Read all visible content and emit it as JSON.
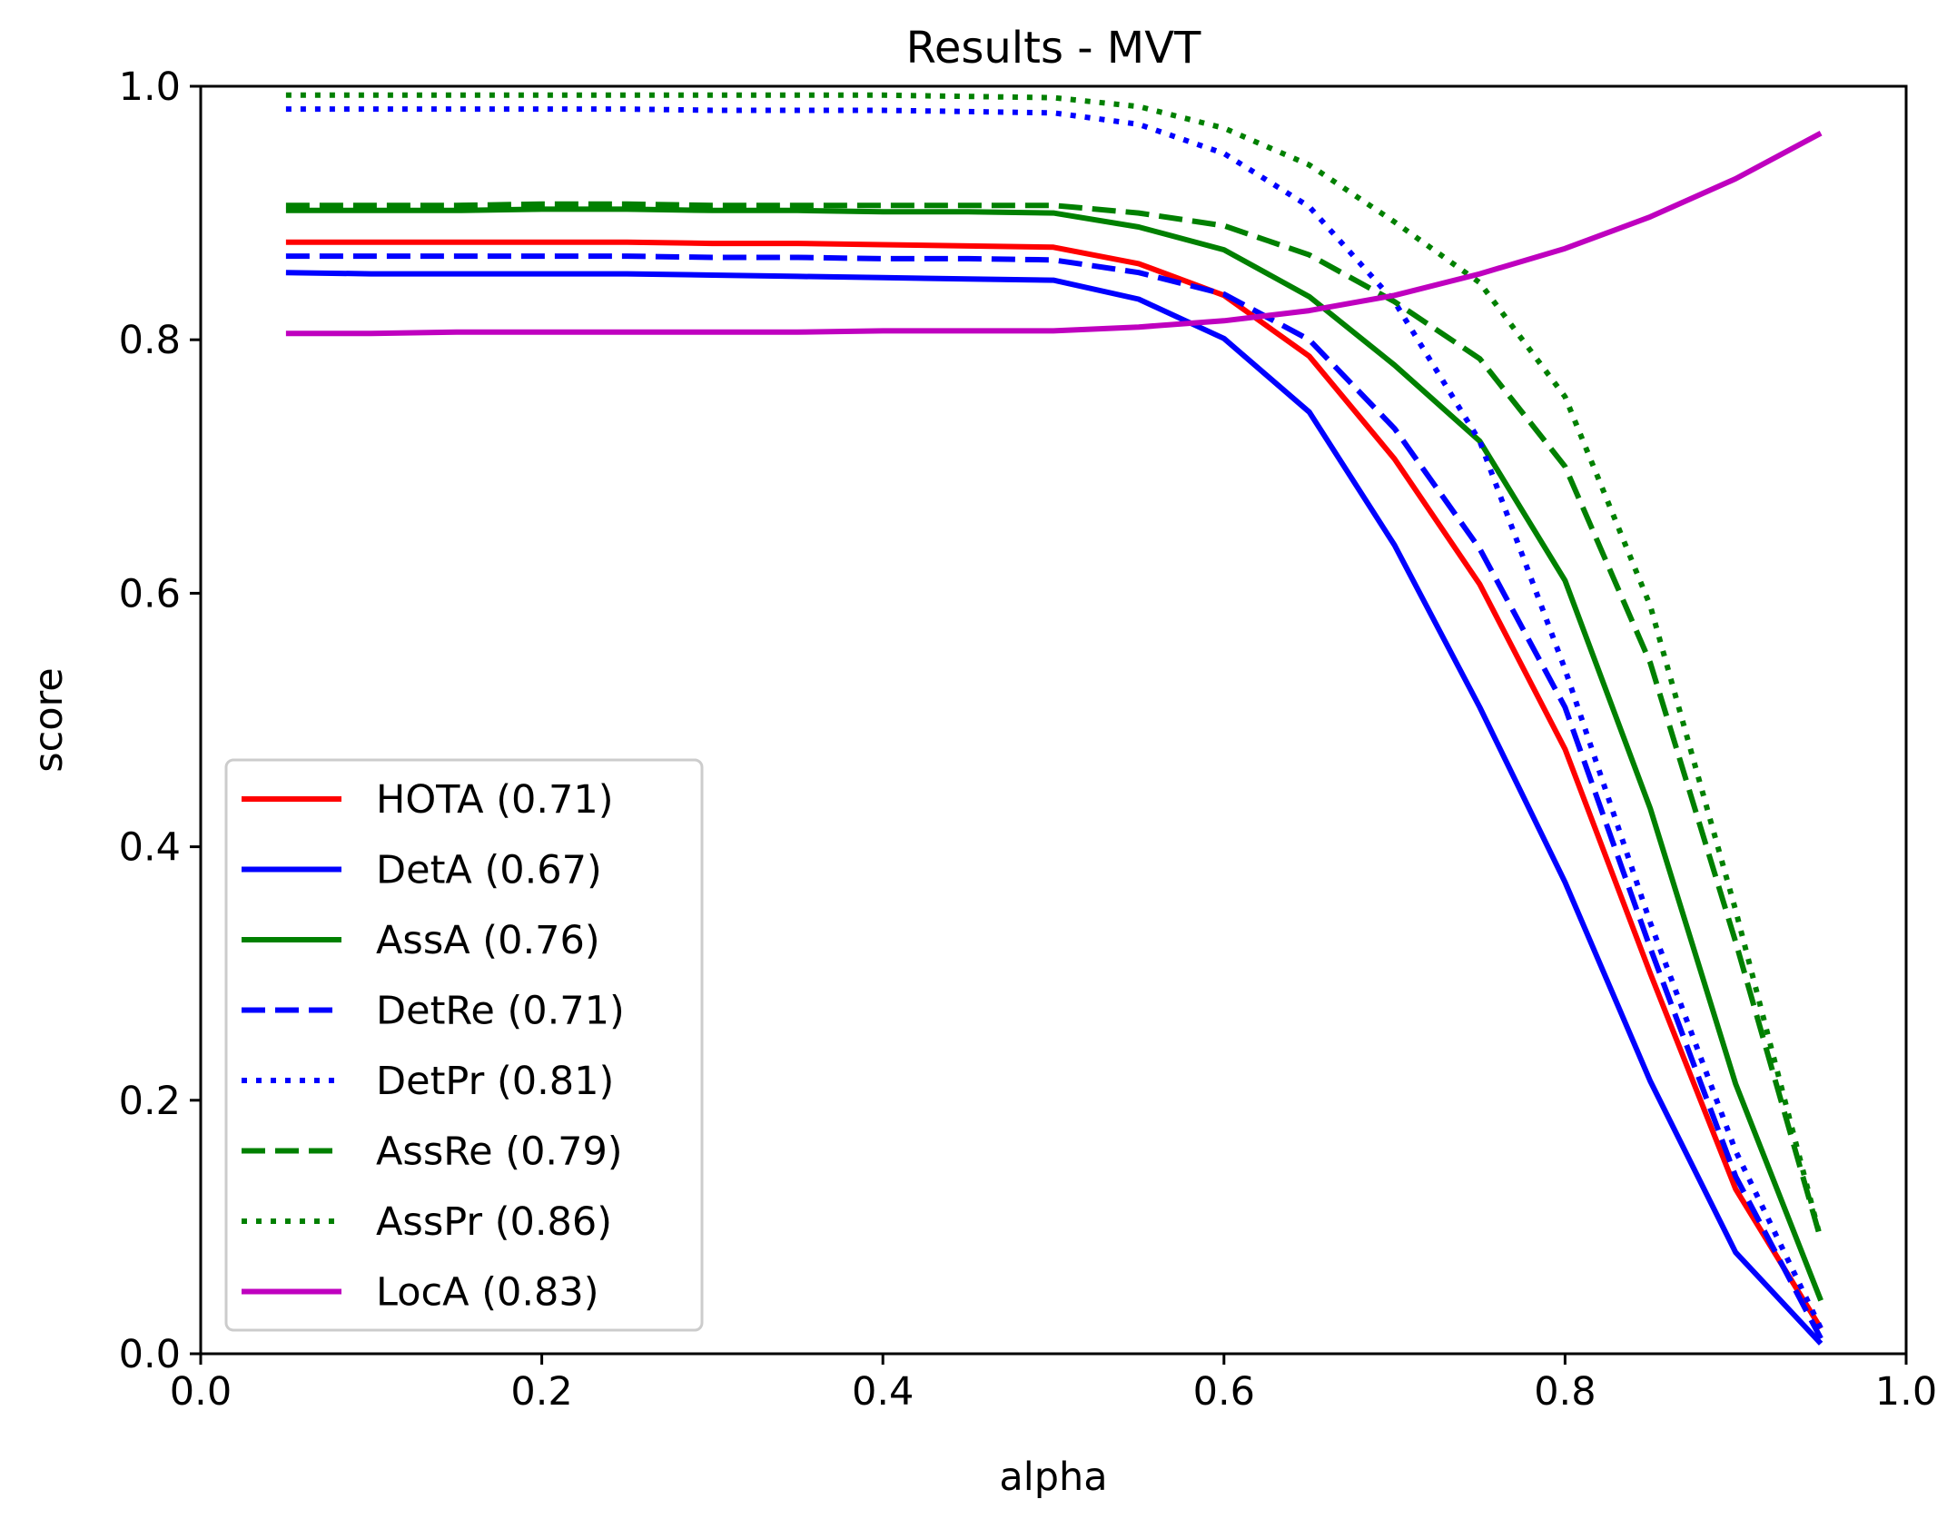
{
  "chart_data": {
    "type": "line",
    "title": "Results - MVT",
    "xlabel": "alpha",
    "ylabel": "score",
    "xlim": [
      0.0,
      1.0
    ],
    "ylim": [
      0.0,
      1.0
    ],
    "xticks": [
      "0.0",
      "0.2",
      "0.4",
      "0.6",
      "0.8",
      "1.0"
    ],
    "yticks": [
      "0.0",
      "0.2",
      "0.4",
      "0.6",
      "0.8",
      "1.0"
    ],
    "legend_position": "lower-left",
    "x": [
      0.05,
      0.1,
      0.15,
      0.2,
      0.25,
      0.3,
      0.35,
      0.4,
      0.45,
      0.5,
      0.55,
      0.6,
      0.65,
      0.7,
      0.75,
      0.8,
      0.85,
      0.9,
      0.95
    ],
    "series": [
      {
        "name": "HOTA (0.71)",
        "color": "#ff0000",
        "dash": "solid",
        "values": [
          0.877,
          0.877,
          0.877,
          0.877,
          0.877,
          0.876,
          0.876,
          0.875,
          0.874,
          0.873,
          0.86,
          0.835,
          0.787,
          0.706,
          0.607,
          0.477,
          0.3,
          0.13,
          0.02
        ]
      },
      {
        "name": "DetA (0.67)",
        "color": "#0000ff",
        "dash": "solid",
        "values": [
          0.853,
          0.852,
          0.852,
          0.852,
          0.852,
          0.851,
          0.85,
          0.849,
          0.848,
          0.847,
          0.832,
          0.801,
          0.743,
          0.638,
          0.51,
          0.372,
          0.215,
          0.08,
          0.008
        ]
      },
      {
        "name": "AssA (0.76)",
        "color": "#008000",
        "dash": "solid",
        "values": [
          0.902,
          0.902,
          0.902,
          0.903,
          0.903,
          0.902,
          0.902,
          0.901,
          0.901,
          0.9,
          0.889,
          0.871,
          0.834,
          0.78,
          0.72,
          0.61,
          0.43,
          0.213,
          0.042
        ]
      },
      {
        "name": "DetRe (0.71)",
        "color": "#0000ff",
        "dash": "dashed",
        "values": [
          0.866,
          0.866,
          0.866,
          0.866,
          0.866,
          0.865,
          0.865,
          0.864,
          0.864,
          0.863,
          0.853,
          0.836,
          0.8,
          0.73,
          0.635,
          0.51,
          0.32,
          0.14,
          0.012
        ]
      },
      {
        "name": "DetPr (0.81)",
        "color": "#0000ff",
        "dash": "dotted",
        "values": [
          0.982,
          0.982,
          0.982,
          0.982,
          0.982,
          0.981,
          0.981,
          0.981,
          0.98,
          0.979,
          0.97,
          0.947,
          0.905,
          0.83,
          0.72,
          0.54,
          0.34,
          0.16,
          0.02
        ]
      },
      {
        "name": "AssRe (0.79)",
        "color": "#008000",
        "dash": "dashed",
        "values": [
          0.906,
          0.906,
          0.906,
          0.907,
          0.907,
          0.906,
          0.906,
          0.906,
          0.906,
          0.906,
          0.9,
          0.89,
          0.867,
          0.83,
          0.785,
          0.7,
          0.545,
          0.325,
          0.09
        ]
      },
      {
        "name": "AssPr (0.86)",
        "color": "#008000",
        "dash": "dotted",
        "values": [
          0.993,
          0.993,
          0.993,
          0.993,
          0.993,
          0.993,
          0.993,
          0.993,
          0.992,
          0.991,
          0.984,
          0.967,
          0.938,
          0.893,
          0.845,
          0.755,
          0.59,
          0.35,
          0.09
        ]
      },
      {
        "name": "LocA (0.83)",
        "color": "#bf00bf",
        "dash": "solid",
        "values": [
          0.805,
          0.805,
          0.806,
          0.806,
          0.806,
          0.806,
          0.806,
          0.807,
          0.807,
          0.807,
          0.81,
          0.815,
          0.823,
          0.835,
          0.852,
          0.872,
          0.897,
          0.927,
          0.963
        ]
      }
    ]
  }
}
